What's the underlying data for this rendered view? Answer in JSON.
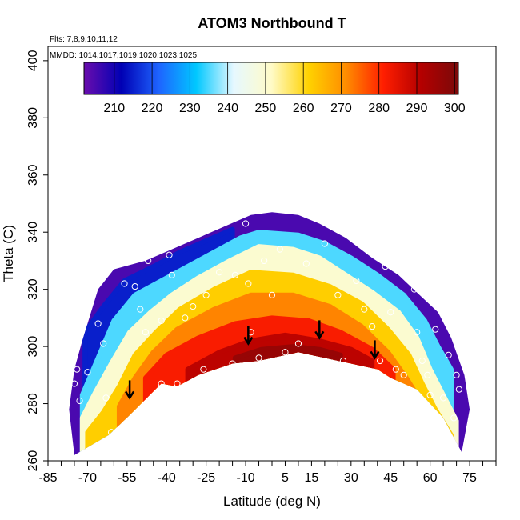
{
  "chart_data": {
    "type": "heatmap",
    "title": "ATOM3 Northbound T",
    "notes": [
      "Flts: 7,8,9,10,11,12",
      "MMDD: 1014,1017,1019,1020,1023,1025"
    ],
    "xlabel": "Latitude (deg N)",
    "ylabel": "Theta (C)",
    "xlim": [
      -85,
      85
    ],
    "ylim": [
      260,
      405
    ],
    "x_ticks": [
      -85,
      -70,
      -55,
      -40,
      -25,
      -10,
      5,
      15,
      30,
      45,
      60,
      75
    ],
    "y_ticks": [
      260,
      280,
      300,
      320,
      340,
      360,
      380,
      400
    ],
    "colorbar": {
      "min": 202,
      "max": 301,
      "ticks": [
        210,
        220,
        230,
        240,
        250,
        260,
        270,
        280,
        290,
        300
      ],
      "colors": [
        "#6a0dad",
        "#0000b4",
        "#1e64ff",
        "#00c8ff",
        "#e6f8ff",
        "#fffbc8",
        "#ffd200",
        "#ff8c00",
        "#ff1e00",
        "#b40000",
        "#7a0a0a"
      ]
    },
    "grid": false,
    "bottom_boundary": [
      [
        -75,
        262
      ],
      [
        -62,
        269
      ],
      [
        -54,
        276
      ],
      [
        -42,
        287
      ],
      [
        -36,
        286
      ],
      [
        -28,
        290
      ],
      [
        -15,
        294
      ],
      [
        -5,
        295
      ],
      [
        10,
        298
      ],
      [
        20,
        296
      ],
      [
        30,
        294
      ],
      [
        40,
        292
      ],
      [
        45,
        289
      ],
      [
        55,
        285
      ],
      [
        65,
        275
      ],
      [
        72,
        263
      ]
    ],
    "top_boundary": [
      [
        -77,
        278
      ],
      [
        -75,
        292
      ],
      [
        -72,
        302
      ],
      [
        -66,
        320
      ],
      [
        -60,
        327
      ],
      [
        -48,
        330
      ],
      [
        -38,
        334
      ],
      [
        -28,
        338
      ],
      [
        -18,
        342
      ],
      [
        -8,
        346
      ],
      [
        0,
        347
      ],
      [
        10,
        346
      ],
      [
        18,
        343
      ],
      [
        28,
        338
      ],
      [
        38,
        331
      ],
      [
        48,
        325
      ],
      [
        56,
        318
      ],
      [
        63,
        312
      ],
      [
        68,
        303
      ],
      [
        73,
        290
      ],
      [
        75,
        278
      ]
    ],
    "contours": [
      {
        "level": 215,
        "points": [
          [
            -71,
            305
          ],
          [
            -64,
            314
          ],
          [
            -56,
            323
          ],
          [
            -45,
            328
          ],
          [
            -35,
            333
          ],
          [
            -25,
            337
          ],
          [
            -15,
            341
          ]
        ]
      },
      {
        "level": 235,
        "points": [
          [
            -72,
            283
          ],
          [
            -66,
            296
          ],
          [
            -60,
            309
          ],
          [
            -52,
            318
          ],
          [
            -44,
            322
          ],
          [
            -34,
            327
          ],
          [
            -22,
            333
          ],
          [
            -12,
            338
          ],
          [
            -5,
            340
          ],
          [
            10,
            339
          ],
          [
            20,
            336
          ],
          [
            30,
            331
          ],
          [
            40,
            325
          ],
          [
            50,
            318
          ],
          [
            58,
            309
          ],
          [
            63,
            300
          ],
          [
            68,
            292
          ]
        ]
      },
      {
        "level": 250,
        "points": [
          [
            -72,
            275
          ],
          [
            -67,
            284
          ],
          [
            -61,
            294
          ],
          [
            -54,
            305
          ],
          [
            -46,
            312
          ],
          [
            -38,
            318
          ],
          [
            -28,
            324
          ],
          [
            -16,
            330
          ],
          [
            -5,
            335
          ],
          [
            8,
            334
          ],
          [
            18,
            331
          ],
          [
            28,
            325
          ],
          [
            38,
            319
          ],
          [
            48,
            312
          ],
          [
            55,
            303
          ],
          [
            60,
            292
          ],
          [
            65,
            283
          ],
          [
            70,
            274
          ]
        ]
      },
      {
        "level": 262,
        "points": [
          [
            -70,
            270
          ],
          [
            -64,
            277
          ],
          [
            -58,
            286
          ],
          [
            -52,
            297
          ],
          [
            -44,
            305
          ],
          [
            -35,
            313
          ],
          [
            -22,
            320
          ],
          [
            -8,
            326
          ],
          [
            8,
            325
          ],
          [
            22,
            321
          ],
          [
            34,
            315
          ],
          [
            44,
            306
          ],
          [
            52,
            297
          ],
          [
            57,
            287
          ],
          [
            62,
            278
          ],
          [
            68,
            269
          ]
        ]
      },
      {
        "level": 272,
        "points": [
          [
            -58,
            279
          ],
          [
            -52,
            289
          ],
          [
            -45,
            298
          ],
          [
            -36,
            306
          ],
          [
            -22,
            313
          ],
          [
            -8,
            318
          ],
          [
            8,
            318
          ],
          [
            22,
            314
          ],
          [
            34,
            307
          ],
          [
            44,
            298
          ],
          [
            51,
            289
          ],
          [
            57,
            280
          ]
        ]
      },
      {
        "level": 282,
        "points": [
          [
            -48,
            289
          ],
          [
            -40,
            297
          ],
          [
            -28,
            303
          ],
          [
            -14,
            308
          ],
          [
            0,
            310
          ],
          [
            14,
            309
          ],
          [
            26,
            305
          ],
          [
            38,
            299
          ],
          [
            46,
            292
          ]
        ]
      },
      {
        "level": 290,
        "points": [
          [
            -32,
            292
          ],
          [
            -20,
            298
          ],
          [
            -8,
            302
          ],
          [
            5,
            304
          ],
          [
            18,
            302
          ],
          [
            30,
            299
          ],
          [
            38,
            295
          ]
        ]
      },
      {
        "level": 296,
        "points": [
          [
            -14,
            296
          ],
          [
            -4,
            299
          ],
          [
            8,
            300
          ],
          [
            18,
            299
          ],
          [
            26,
            297
          ]
        ]
      }
    ],
    "sample_points": [
      [
        -75,
        287
      ],
      [
        -74,
        292
      ],
      [
        -73,
        281
      ],
      [
        -70,
        291
      ],
      [
        -66,
        308
      ],
      [
        -66,
        325
      ],
      [
        -64,
        301
      ],
      [
        -63,
        282
      ],
      [
        -61,
        270
      ],
      [
        -56,
        322
      ],
      [
        -52,
        321
      ],
      [
        -50,
        313
      ],
      [
        -48,
        305
      ],
      [
        -47,
        330
      ],
      [
        -42,
        309
      ],
      [
        -42,
        287
      ],
      [
        -39,
        332
      ],
      [
        -38,
        325
      ],
      [
        -36,
        287
      ],
      [
        -33,
        310
      ],
      [
        -30,
        314
      ],
      [
        -26,
        292
      ],
      [
        -25,
        318
      ],
      [
        -20,
        326
      ],
      [
        -15,
        294
      ],
      [
        -14,
        325
      ],
      [
        -10,
        343
      ],
      [
        -9,
        322
      ],
      [
        -8,
        305
      ],
      [
        -5,
        296
      ],
      [
        -3,
        330
      ],
      [
        0,
        318
      ],
      [
        3,
        334
      ],
      [
        5,
        298
      ],
      [
        10,
        301
      ],
      [
        13,
        329
      ],
      [
        17,
        295
      ],
      [
        20,
        336
      ],
      [
        25,
        318
      ],
      [
        27,
        295
      ],
      [
        30,
        340
      ],
      [
        32,
        323
      ],
      [
        35,
        313
      ],
      [
        38,
        307
      ],
      [
        41,
        295
      ],
      [
        43,
        328
      ],
      [
        45,
        312
      ],
      [
        47,
        292
      ],
      [
        50,
        290
      ],
      [
        52,
        338
      ],
      [
        54,
        320
      ],
      [
        55,
        305
      ],
      [
        57,
        295
      ],
      [
        59,
        290
      ],
      [
        60,
        283
      ],
      [
        62,
        306
      ],
      [
        63,
        315
      ],
      [
        65,
        282
      ],
      [
        67,
        297
      ],
      [
        69,
        275
      ],
      [
        70,
        290
      ],
      [
        71,
        285
      ],
      [
        72,
        300
      ]
    ],
    "arrows": [
      [
        -54,
        282
      ],
      [
        -9,
        301
      ],
      [
        18,
        303
      ],
      [
        39,
        296
      ]
    ]
  }
}
